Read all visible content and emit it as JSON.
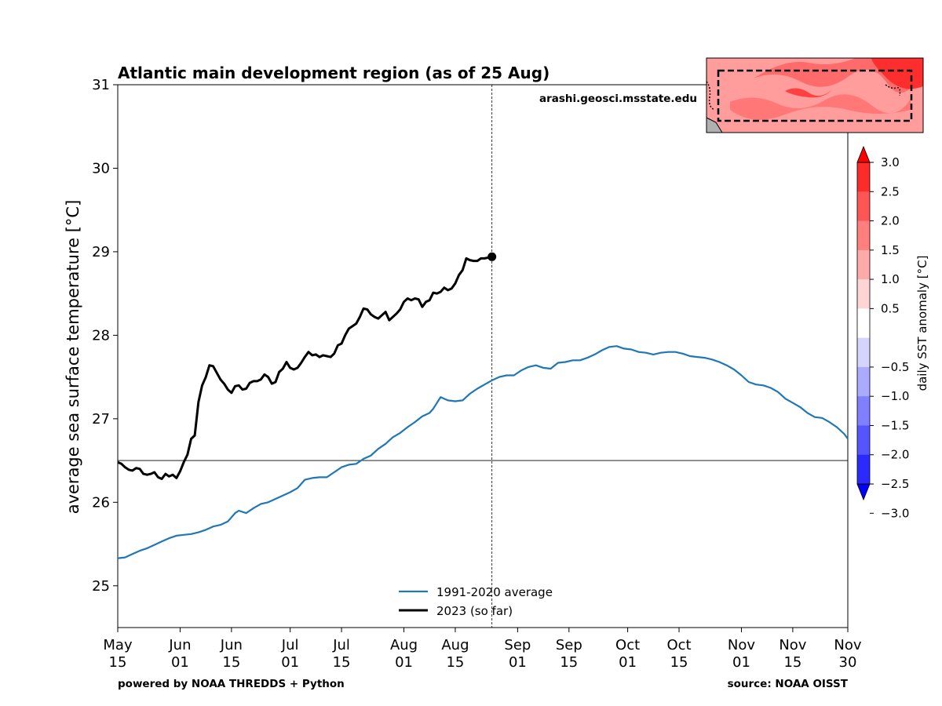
{
  "chart_data": {
    "type": "line",
    "title": "Atlantic main development region (as of 25 Aug)",
    "ylabel": "average sea surface temperature [°C]",
    "xlabel": "",
    "ylim": [
      24.5,
      31
    ],
    "x_range": [
      "May 15",
      "Nov 30"
    ],
    "yticks": [
      "25",
      "26",
      "27",
      "28",
      "29",
      "30",
      "31"
    ],
    "xticks": [
      {
        "line1": "May",
        "line2": "15",
        "day": 0
      },
      {
        "line1": "Jun",
        "line2": "01",
        "day": 17
      },
      {
        "line1": "Jun",
        "line2": "15",
        "day": 31
      },
      {
        "line1": "Jul",
        "line2": "01",
        "day": 47
      },
      {
        "line1": "Jul",
        "line2": "15",
        "day": 61
      },
      {
        "line1": "Aug",
        "line2": "01",
        "day": 78
      },
      {
        "line1": "Aug",
        "line2": "15",
        "day": 92
      },
      {
        "line1": "Sep",
        "line2": "01",
        "day": 109
      },
      {
        "line1": "Sep",
        "line2": "15",
        "day": 123
      },
      {
        "line1": "Oct",
        "line2": "01",
        "day": 139
      },
      {
        "line1": "Oct",
        "line2": "15",
        "day": 153
      },
      {
        "line1": "Nov",
        "line2": "01",
        "day": 170
      },
      {
        "line1": "Nov",
        "line2": "15",
        "day": 184
      },
      {
        "line1": "Nov",
        "line2": "30",
        "day": 199
      }
    ],
    "x_max_day": 199,
    "current_day": 102,
    "current_value": 28.94,
    "reference_line": 26.5,
    "series": [
      {
        "name": "1991-2020 average",
        "color": "#1f77b4",
        "points": [
          [
            0,
            25.33
          ],
          [
            2,
            25.34
          ],
          [
            4,
            25.38
          ],
          [
            6,
            25.42
          ],
          [
            8,
            25.45
          ],
          [
            10,
            25.49
          ],
          [
            12,
            25.53
          ],
          [
            14,
            25.57
          ],
          [
            16,
            25.6
          ],
          [
            18,
            25.61
          ],
          [
            20,
            25.62
          ],
          [
            22,
            25.64
          ],
          [
            24,
            25.67
          ],
          [
            26,
            25.71
          ],
          [
            28,
            25.73
          ],
          [
            30,
            25.77
          ],
          [
            32,
            25.87
          ],
          [
            33,
            25.9
          ],
          [
            35,
            25.87
          ],
          [
            37,
            25.93
          ],
          [
            39,
            25.98
          ],
          [
            41,
            26.0
          ],
          [
            43,
            26.04
          ],
          [
            45,
            26.08
          ],
          [
            47,
            26.12
          ],
          [
            49,
            26.17
          ],
          [
            51,
            26.27
          ],
          [
            53,
            26.29
          ],
          [
            55,
            26.3
          ],
          [
            57,
            26.3
          ],
          [
            59,
            26.36
          ],
          [
            61,
            26.42
          ],
          [
            63,
            26.45
          ],
          [
            65,
            26.46
          ],
          [
            67,
            26.52
          ],
          [
            69,
            26.56
          ],
          [
            71,
            26.64
          ],
          [
            73,
            26.7
          ],
          [
            75,
            26.78
          ],
          [
            77,
            26.83
          ],
          [
            79,
            26.9
          ],
          [
            81,
            26.96
          ],
          [
            83,
            27.03
          ],
          [
            85,
            27.07
          ],
          [
            86,
            27.12
          ],
          [
            88,
            27.26
          ],
          [
            90,
            27.22
          ],
          [
            92,
            27.21
          ],
          [
            94,
            27.22
          ],
          [
            96,
            27.3
          ],
          [
            98,
            27.36
          ],
          [
            100,
            27.41
          ],
          [
            102,
            27.46
          ],
          [
            104,
            27.5
          ],
          [
            106,
            27.52
          ],
          [
            108,
            27.52
          ],
          [
            110,
            27.58
          ],
          [
            112,
            27.62
          ],
          [
            114,
            27.64
          ],
          [
            116,
            27.61
          ],
          [
            118,
            27.6
          ],
          [
            120,
            27.67
          ],
          [
            122,
            27.68
          ],
          [
            124,
            27.7
          ],
          [
            126,
            27.7
          ],
          [
            128,
            27.73
          ],
          [
            130,
            27.77
          ],
          [
            132,
            27.82
          ],
          [
            134,
            27.86
          ],
          [
            136,
            27.87
          ],
          [
            138,
            27.84
          ],
          [
            140,
            27.83
          ],
          [
            142,
            27.8
          ],
          [
            144,
            27.79
          ],
          [
            146,
            27.77
          ],
          [
            148,
            27.79
          ],
          [
            150,
            27.8
          ],
          [
            152,
            27.8
          ],
          [
            154,
            27.78
          ],
          [
            156,
            27.75
          ],
          [
            158,
            27.74
          ],
          [
            160,
            27.73
          ],
          [
            162,
            27.71
          ],
          [
            164,
            27.68
          ],
          [
            166,
            27.64
          ],
          [
            168,
            27.59
          ],
          [
            170,
            27.52
          ],
          [
            172,
            27.44
          ],
          [
            174,
            27.41
          ],
          [
            176,
            27.4
          ],
          [
            178,
            27.37
          ],
          [
            180,
            27.32
          ],
          [
            182,
            27.24
          ],
          [
            184,
            27.19
          ],
          [
            186,
            27.14
          ],
          [
            188,
            27.07
          ],
          [
            190,
            27.02
          ],
          [
            192,
            27.01
          ],
          [
            194,
            26.96
          ],
          [
            196,
            26.9
          ],
          [
            198,
            26.82
          ],
          [
            199,
            26.76
          ]
        ]
      },
      {
        "name": "2023 (so far)",
        "color": "#000000",
        "points": [
          [
            0,
            26.48
          ],
          [
            1,
            26.46
          ],
          [
            2,
            26.42
          ],
          [
            3,
            26.39
          ],
          [
            4,
            26.38
          ],
          [
            5,
            26.41
          ],
          [
            6,
            26.4
          ],
          [
            7,
            26.34
          ],
          [
            8,
            26.33
          ],
          [
            9,
            26.34
          ],
          [
            10,
            26.36
          ],
          [
            11,
            26.3
          ],
          [
            12,
            26.28
          ],
          [
            13,
            26.34
          ],
          [
            14,
            26.31
          ],
          [
            15,
            26.33
          ],
          [
            16,
            26.29
          ],
          [
            17,
            26.37
          ],
          [
            18,
            26.48
          ],
          [
            19,
            26.57
          ],
          [
            20,
            26.76
          ],
          [
            21,
            26.8
          ],
          [
            22,
            27.2
          ],
          [
            23,
            27.4
          ],
          [
            24,
            27.5
          ],
          [
            25,
            27.64
          ],
          [
            26,
            27.63
          ],
          [
            27,
            27.55
          ],
          [
            28,
            27.47
          ],
          [
            29,
            27.42
          ],
          [
            30,
            27.35
          ],
          [
            31,
            27.31
          ],
          [
            32,
            27.39
          ],
          [
            33,
            27.4
          ],
          [
            34,
            27.35
          ],
          [
            35,
            27.36
          ],
          [
            36,
            27.43
          ],
          [
            37,
            27.45
          ],
          [
            38,
            27.45
          ],
          [
            39,
            27.47
          ],
          [
            40,
            27.53
          ],
          [
            41,
            27.5
          ],
          [
            42,
            27.42
          ],
          [
            43,
            27.44
          ],
          [
            44,
            27.56
          ],
          [
            45,
            27.6
          ],
          [
            46,
            27.68
          ],
          [
            47,
            27.61
          ],
          [
            48,
            27.59
          ],
          [
            49,
            27.61
          ],
          [
            50,
            27.67
          ],
          [
            51,
            27.74
          ],
          [
            52,
            27.8
          ],
          [
            53,
            27.76
          ],
          [
            54,
            27.77
          ],
          [
            55,
            27.74
          ],
          [
            56,
            27.76
          ],
          [
            57,
            27.75
          ],
          [
            58,
            27.74
          ],
          [
            59,
            27.78
          ],
          [
            60,
            27.88
          ],
          [
            61,
            27.9
          ],
          [
            62,
            28.0
          ],
          [
            63,
            28.08
          ],
          [
            64,
            28.11
          ],
          [
            65,
            28.14
          ],
          [
            66,
            28.22
          ],
          [
            67,
            28.32
          ],
          [
            68,
            28.31
          ],
          [
            69,
            28.25
          ],
          [
            70,
            28.22
          ],
          [
            71,
            28.2
          ],
          [
            72,
            28.24
          ],
          [
            73,
            28.28
          ],
          [
            74,
            28.18
          ],
          [
            75,
            28.22
          ],
          [
            76,
            28.26
          ],
          [
            77,
            28.31
          ],
          [
            78,
            28.4
          ],
          [
            79,
            28.44
          ],
          [
            80,
            28.42
          ],
          [
            81,
            28.44
          ],
          [
            82,
            28.43
          ],
          [
            83,
            28.34
          ],
          [
            84,
            28.4
          ],
          [
            85,
            28.42
          ],
          [
            86,
            28.51
          ],
          [
            87,
            28.5
          ],
          [
            88,
            28.52
          ],
          [
            89,
            28.57
          ],
          [
            90,
            28.54
          ],
          [
            91,
            28.56
          ],
          [
            92,
            28.62
          ],
          [
            93,
            28.72
          ],
          [
            94,
            28.78
          ],
          [
            95,
            28.92
          ],
          [
            96,
            28.9
          ],
          [
            97,
            28.89
          ],
          [
            98,
            28.89
          ],
          [
            99,
            28.92
          ],
          [
            100,
            28.92
          ],
          [
            101,
            28.93
          ],
          [
            102,
            28.94
          ]
        ]
      }
    ],
    "legend": {
      "placement": "bottom-center",
      "entries": [
        "1991-2020 average",
        "2023 (so far)"
      ]
    },
    "colorbar": {
      "label": "daily SST anomaly [°C]",
      "ticks": [
        "3.0",
        "2.5",
        "2.0",
        "1.5",
        "1.0",
        "0.5",
        "−0.5",
        "−1.0",
        "−1.5",
        "−2.0",
        "−2.5",
        "−3.0"
      ],
      "tick_values": [
        3.0,
        2.5,
        2.0,
        1.5,
        1.0,
        0.5,
        -0.5,
        -1.0,
        -1.5,
        -2.0,
        -2.5,
        -3.0
      ],
      "colors_top_to_bottom": [
        "#ff2a2a",
        "#ff5555",
        "#ff7f7f",
        "#ffaaaa",
        "#ffd4d4",
        "#ffffff",
        "#d4d4ff",
        "#aaaaff",
        "#7f7fff",
        "#5555ff",
        "#2a2aff"
      ],
      "over_color": "#ff0000",
      "under_color": "#0000ff"
    },
    "inset_map": {
      "description_colors": [
        "#ff9f9f",
        "#ff6f6f",
        "#ff3a3a",
        "#ffc8c8"
      ]
    },
    "watermark": "arashi.geosci.msstate.edu",
    "credit_left": "powered by NOAA THREDDS + Python",
    "credit_right": "source: NOAA OISST"
  }
}
